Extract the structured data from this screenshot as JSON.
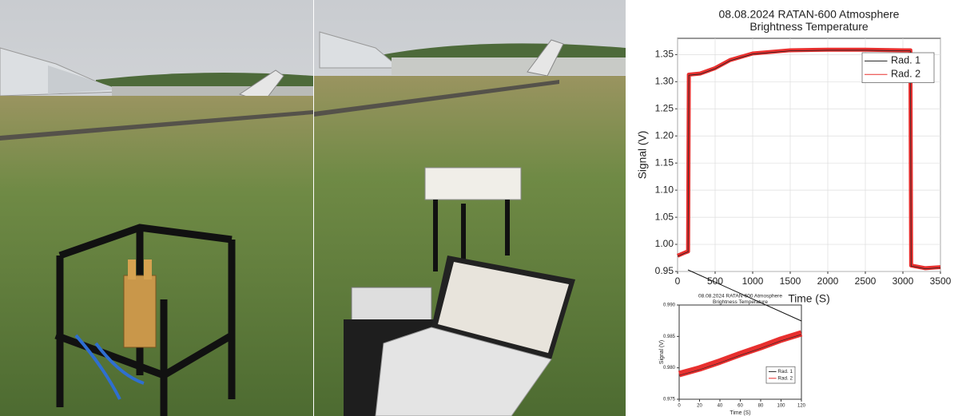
{
  "chart_data": [
    {
      "type": "line",
      "title": "08.08.2024 RATAN-600 Atmosphere",
      "subtitle": "Brightness Temperature",
      "x_label": "Time (S)",
      "y_label": "Signal (V)",
      "xlim": [
        0,
        3500
      ],
      "xticks": [
        0,
        500,
        1000,
        1500,
        2000,
        2500,
        3000,
        3500
      ],
      "ylim": [
        0.95,
        1.38
      ],
      "yticks": [
        0.95,
        {
          "value": 1,
          "label": "1.00"
        },
        1.05,
        {
          "value": 1.1,
          "label": "1.10"
        },
        1.15,
        {
          "value": 1.2,
          "label": "1.20"
        },
        1.25,
        {
          "value": 1.3,
          "label": "1.30"
        },
        1.35
      ],
      "grid": true,
      "x": [
        0,
        100,
        140,
        150,
        300,
        500,
        700,
        1000,
        1500,
        2000,
        2500,
        3000,
        3100,
        3110,
        3300,
        3500
      ],
      "series": [
        {
          "name": "Rad. 1",
          "color": "#222222",
          "values": [
            0.978,
            0.984,
            0.986,
            1.312,
            1.314,
            1.324,
            1.339,
            1.351,
            1.357,
            1.358,
            1.358,
            1.357,
            1.357,
            0.96,
            0.955,
            0.957
          ]
        },
        {
          "name": "Rad. 2",
          "color": "#e8302f",
          "values": [
            0.979,
            0.985,
            0.987,
            1.313,
            1.315,
            1.325,
            1.34,
            1.352,
            1.358,
            1.359,
            1.359,
            1.358,
            1.358,
            0.961,
            0.956,
            0.958
          ]
        }
      ],
      "legend": "top-right"
    },
    {
      "type": "line",
      "title": "08.08.2024 RATAN-600 Atmosphere",
      "subtitle": "Brightness Temperature",
      "x_label": "Time (S)",
      "y_label": "Signal (V)",
      "xlim": [
        0,
        120
      ],
      "xticks": [
        0,
        20,
        40,
        60,
        80,
        100,
        120
      ],
      "ylim": [
        0.975,
        0.99
      ],
      "yticks": [
        0.975,
        {
          "value": 0.98,
          "label": "0.980"
        },
        0.985,
        {
          "value": 0.99,
          "label": "0.990"
        }
      ],
      "grid": false,
      "x": [
        0,
        20,
        40,
        60,
        80,
        100,
        120
      ],
      "series": [
        {
          "name": "Rad. 1",
          "color": "#222222",
          "values": [
            0.9788,
            0.9797,
            0.9808,
            0.982,
            0.9831,
            0.9843,
            0.9853
          ]
        },
        {
          "name": "Rad. 2",
          "color": "#e8302f",
          "values": [
            0.979,
            0.9799,
            0.981,
            0.9822,
            0.9833,
            0.9845,
            0.9855
          ]
        }
      ],
      "legend": "bottom-right"
    }
  ]
}
